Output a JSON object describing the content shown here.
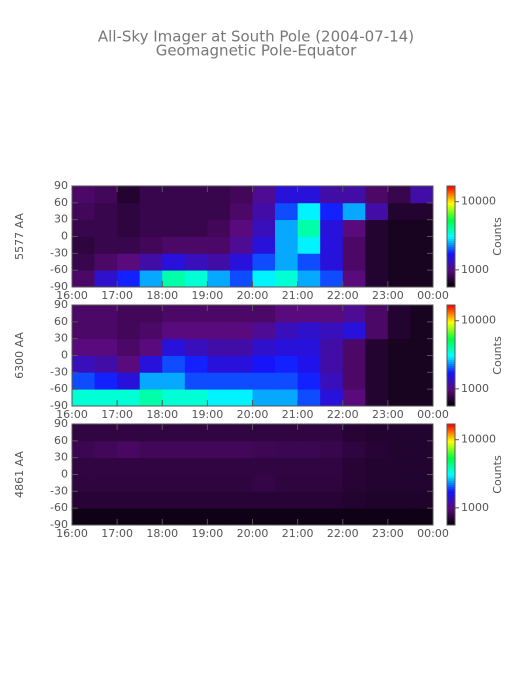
{
  "title": "All-Sky Imager at South Pole (2004-07-14)",
  "subtitle": "Geomagnetic Pole-Equator",
  "colormap": [
    "#000000",
    "#5a0a7a",
    "#1414ff",
    "#00ffff",
    "#00ff40",
    "#ffff00",
    "#ff0000"
  ],
  "chart_data": [
    {
      "type": "heatmap",
      "ylabel": "5577 AA",
      "zlabel": "Counts",
      "log_z": true,
      "xlim": [
        16,
        24
      ],
      "ylim": [
        -90,
        90
      ],
      "zlim": [
        560,
        17000
      ],
      "xticks": [
        {
          "value": 16,
          "label": "16:00"
        },
        {
          "value": 17,
          "label": "17:00"
        },
        {
          "value": 18,
          "label": "18:00"
        },
        {
          "value": 19,
          "label": "19:00"
        },
        {
          "value": 20,
          "label": "20:00"
        },
        {
          "value": 21,
          "label": "21:00"
        },
        {
          "value": 22,
          "label": "22:00"
        },
        {
          "value": 23,
          "label": "23:00"
        },
        {
          "value": 24,
          "label": "00:00"
        }
      ],
      "yticks": [
        -90,
        -60,
        -30,
        0,
        30,
        60,
        90
      ],
      "zticks": [
        1000,
        10000
      ],
      "xbins": [
        16,
        16.5,
        17,
        17.5,
        18,
        18.5,
        19,
        19.5,
        20,
        20.5,
        21,
        21.5,
        22,
        22.5,
        23,
        23.5,
        24
      ],
      "ybins": [
        -90,
        -60,
        -30,
        0,
        30,
        60,
        90
      ],
      "values": [
        [
          900,
          1400,
          1800,
          2500,
          4000,
          3500,
          2500,
          2000,
          3000,
          3500,
          2500,
          2000,
          1000,
          700,
          650,
          650
        ],
        [
          800,
          900,
          1000,
          1200,
          1500,
          1300,
          1200,
          1500,
          2000,
          2500,
          2000,
          1500,
          900,
          700,
          650,
          650
        ],
        [
          750,
          800,
          800,
          850,
          900,
          900,
          900,
          1100,
          1500,
          2500,
          3000,
          1500,
          900,
          700,
          650,
          650
        ],
        [
          800,
          800,
          750,
          800,
          800,
          800,
          850,
          1000,
          1300,
          2500,
          4000,
          1500,
          1000,
          700,
          650,
          650
        ],
        [
          850,
          800,
          750,
          800,
          800,
          800,
          800,
          900,
          1200,
          2000,
          3000,
          1800,
          2500,
          1200,
          700,
          700
        ],
        [
          900,
          850,
          700,
          800,
          800,
          800,
          800,
          850,
          1100,
          1500,
          1500,
          1200,
          1200,
          900,
          800,
          1200
        ]
      ]
    },
    {
      "type": "heatmap",
      "ylabel": "6300 AA",
      "zlabel": "Counts",
      "log_z": true,
      "xlim": [
        16,
        24
      ],
      "ylim": [
        -90,
        90
      ],
      "zlim": [
        560,
        17000
      ],
      "xticks": [
        {
          "value": 16,
          "label": "16:00"
        },
        {
          "value": 17,
          "label": "17:00"
        },
        {
          "value": 18,
          "label": "18:00"
        },
        {
          "value": 19,
          "label": "19:00"
        },
        {
          "value": 20,
          "label": "20:00"
        },
        {
          "value": 21,
          "label": "21:00"
        },
        {
          "value": 22,
          "label": "22:00"
        },
        {
          "value": 23,
          "label": "23:00"
        },
        {
          "value": 24,
          "label": "00:00"
        }
      ],
      "yticks": [
        -90,
        -60,
        -30,
        0,
        30,
        60,
        90
      ],
      "zticks": [
        1000,
        10000
      ],
      "xbins": [
        16,
        16.5,
        17,
        17.5,
        18,
        18.5,
        19,
        19.5,
        20,
        20.5,
        21,
        21.5,
        22,
        22.5,
        23,
        23.5,
        24
      ],
      "ybins": [
        -90,
        -60,
        -30,
        0,
        30,
        60,
        90
      ],
      "values": [
        [
          3500,
          3500,
          3500,
          4000,
          3500,
          3500,
          3000,
          3000,
          2500,
          2500,
          2000,
          1500,
          1000,
          700,
          650,
          650
        ],
        [
          2000,
          1800,
          1500,
          2500,
          2500,
          2000,
          2000,
          2000,
          2000,
          2000,
          1800,
          1300,
          900,
          700,
          650,
          650
        ],
        [
          1300,
          1200,
          1000,
          1500,
          2000,
          1800,
          1500,
          1500,
          1700,
          1800,
          1600,
          1200,
          900,
          700,
          650,
          650
        ],
        [
          1000,
          1000,
          900,
          1000,
          1500,
          1300,
          1200,
          1200,
          1400,
          1500,
          1500,
          1200,
          900,
          700,
          650,
          650
        ],
        [
          900,
          900,
          850,
          900,
          1000,
          1000,
          1000,
          1000,
          1100,
          1300,
          1400,
          1300,
          1500,
          900,
          700,
          650
        ],
        [
          900,
          900,
          850,
          850,
          900,
          900,
          900,
          900,
          900,
          1000,
          1000,
          1000,
          1100,
          900,
          700,
          650
        ]
      ]
    },
    {
      "type": "heatmap",
      "ylabel": "4861 AA",
      "zlabel": "Counts",
      "log_z": true,
      "xlim": [
        16,
        24
      ],
      "ylim": [
        -90,
        90
      ],
      "zlim": [
        560,
        17000
      ],
      "xticks": [
        {
          "value": 16,
          "label": "16:00"
        },
        {
          "value": 17,
          "label": "17:00"
        },
        {
          "value": 18,
          "label": "18:00"
        },
        {
          "value": 19,
          "label": "19:00"
        },
        {
          "value": 20,
          "label": "20:00"
        },
        {
          "value": 21,
          "label": "21:00"
        },
        {
          "value": 22,
          "label": "22:00"
        },
        {
          "value": 23,
          "label": "23:00"
        },
        {
          "value": 24,
          "label": "00:00"
        }
      ],
      "yticks": [
        -90,
        -60,
        -30,
        0,
        30,
        60,
        90
      ],
      "zticks": [
        1000,
        10000
      ],
      "xbins": [
        16,
        16.5,
        17,
        17.5,
        18,
        18.5,
        19,
        19.5,
        20,
        20.5,
        21,
        21.5,
        22,
        22.5,
        23,
        23.5,
        24
      ],
      "ybins": [
        -90,
        -60,
        -30,
        0,
        30,
        60,
        90
      ],
      "values": [
        [
          620,
          620,
          620,
          620,
          620,
          620,
          620,
          620,
          620,
          620,
          620,
          620,
          620,
          620,
          620,
          620
        ],
        [
          720,
          720,
          720,
          720,
          720,
          720,
          720,
          720,
          720,
          720,
          720,
          720,
          700,
          680,
          680,
          680
        ],
        [
          750,
          750,
          750,
          750,
          750,
          750,
          750,
          750,
          780,
          750,
          750,
          750,
          720,
          700,
          700,
          700
        ],
        [
          760,
          760,
          760,
          760,
          760,
          760,
          760,
          760,
          760,
          760,
          760,
          760,
          720,
          700,
          700,
          700
        ],
        [
          820,
          850,
          880,
          850,
          850,
          850,
          850,
          850,
          830,
          820,
          820,
          800,
          750,
          720,
          700,
          700
        ],
        [
          760,
          760,
          760,
          760,
          760,
          760,
          760,
          760,
          760,
          760,
          760,
          760,
          720,
          700,
          700,
          700
        ]
      ]
    }
  ]
}
